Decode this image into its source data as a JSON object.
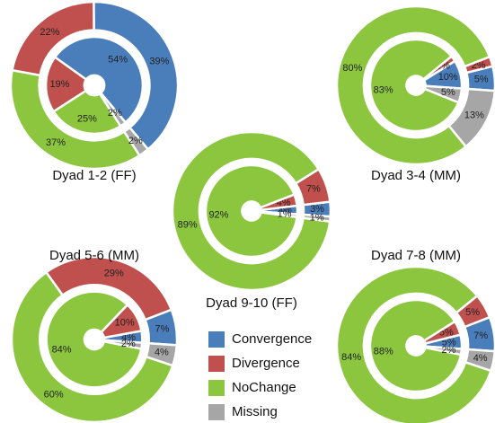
{
  "chart_data": [
    {
      "type": "donut",
      "title": "Dyad 1-2 (FF)",
      "categories": [
        "Convergence",
        "Divergence",
        "NoChange",
        "Missing"
      ],
      "colors": [
        "#4a7ebb",
        "#c0504d",
        "#8cc63f",
        "#a6a6a6"
      ],
      "series": [
        {
          "values": [
            39,
            22,
            37,
            2
          ],
          "value_labels": [
            "39%",
            "22%",
            "37%",
            "2%"
          ]
        },
        {
          "values": [
            54,
            19,
            25,
            2
          ],
          "value_labels": [
            "54%",
            "19%",
            "25%",
            "2%"
          ]
        }
      ]
    },
    {
      "type": "donut",
      "title": "Dyad 3-4 (MM)",
      "categories": [
        "Convergence",
        "Divergence",
        "NoChange",
        "Missing"
      ],
      "colors": [
        "#4a7ebb",
        "#c0504d",
        "#8cc63f",
        "#a6a6a6"
      ],
      "series": [
        {
          "values": [
            5,
            2,
            80,
            13
          ],
          "value_labels": [
            "5%",
            "2%",
            "80%",
            "13%"
          ]
        },
        {
          "values": [
            10,
            2,
            83,
            5
          ],
          "value_labels": [
            "10%",
            "2%",
            "83%",
            "5%"
          ]
        }
      ]
    },
    {
      "type": "donut",
      "title": "Dyad 9-10 (FF)",
      "categories": [
        "Convergence",
        "Divergence",
        "NoChange",
        "Missing"
      ],
      "colors": [
        "#4a7ebb",
        "#c0504d",
        "#8cc63f",
        "#a6a6a6"
      ],
      "series": [
        {
          "values": [
            3,
            7,
            89,
            1
          ],
          "value_labels": [
            "3%",
            "7%",
            "89%",
            "1%"
          ]
        },
        {
          "values": [
            3,
            4,
            92,
            1
          ],
          "value_labels": [
            "3%",
            "4%",
            "92%",
            "1%"
          ]
        }
      ]
    },
    {
      "type": "donut",
      "title": "Dyad 5-6 (MM)",
      "categories": [
        "Convergence",
        "Divergence",
        "NoChange",
        "Missing"
      ],
      "colors": [
        "#4a7ebb",
        "#c0504d",
        "#8cc63f",
        "#a6a6a6"
      ],
      "series": [
        {
          "values": [
            7,
            29,
            60,
            4
          ],
          "value_labels": [
            "7%",
            "29%",
            "60%",
            "4%"
          ]
        },
        {
          "values": [
            4,
            10,
            84,
            2
          ],
          "value_labels": [
            "4%",
            "10%",
            "84%",
            "2%"
          ]
        }
      ]
    },
    {
      "type": "donut",
      "title": "Dyad 7-8 (MM)",
      "categories": [
        "Convergence",
        "Divergence",
        "NoChange",
        "Missing"
      ],
      "colors": [
        "#4a7ebb",
        "#c0504d",
        "#8cc63f",
        "#a6a6a6"
      ],
      "series": [
        {
          "values": [
            7,
            5,
            84,
            4
          ],
          "value_labels": [
            "7%",
            "5%",
            "84%",
            "4%"
          ]
        },
        {
          "values": [
            5,
            5,
            88,
            2
          ],
          "value_labels": [
            "5%",
            "5%",
            "88%",
            "2%"
          ]
        }
      ]
    }
  ]
}
